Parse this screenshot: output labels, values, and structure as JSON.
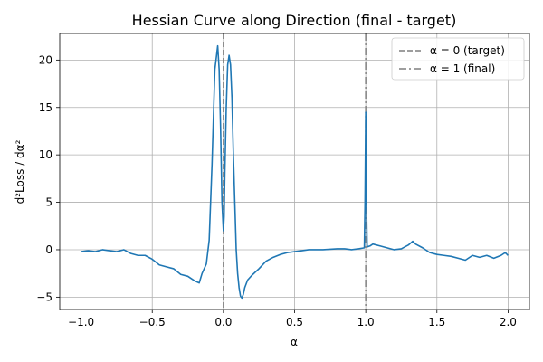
{
  "chart_data": {
    "type": "line",
    "title": "Hessian Curve along Direction (final - target)",
    "xlabel": "α",
    "ylabel": "d²Loss / dα²",
    "xlim": [
      -1.15,
      2.15
    ],
    "ylim": [
      -6.3,
      22.8
    ],
    "xticks": [
      -1.0,
      -0.5,
      0.0,
      0.5,
      1.0,
      1.5,
      2.0
    ],
    "xtick_labels": [
      "−1.0",
      "−0.5",
      "0.0",
      "0.5",
      "1.0",
      "1.5",
      "2.0"
    ],
    "yticks": [
      -5,
      0,
      5,
      10,
      15,
      20
    ],
    "ytick_labels": [
      "−5",
      "0",
      "5",
      "10",
      "15",
      "20"
    ],
    "grid": true,
    "legend_position": "top-right",
    "series": [
      {
        "color": "#1f77b4",
        "x": [
          -1.0,
          -0.95,
          -0.9,
          -0.85,
          -0.8,
          -0.75,
          -0.7,
          -0.65,
          -0.6,
          -0.55,
          -0.5,
          -0.45,
          -0.4,
          -0.35,
          -0.3,
          -0.25,
          -0.2,
          -0.17,
          -0.15,
          -0.12,
          -0.1,
          -0.08,
          -0.06,
          -0.04,
          -0.03,
          -0.02,
          -0.01,
          0.0,
          0.005,
          0.01,
          0.02,
          0.03,
          0.04,
          0.05,
          0.06,
          0.07,
          0.08,
          0.09,
          0.1,
          0.11,
          0.12,
          0.13,
          0.14,
          0.15,
          0.17,
          0.2,
          0.25,
          0.3,
          0.35,
          0.4,
          0.45,
          0.5,
          0.55,
          0.6,
          0.65,
          0.7,
          0.75,
          0.8,
          0.85,
          0.9,
          0.95,
          0.99,
          0.995,
          1.0,
          1.005,
          1.01,
          1.03,
          1.05,
          1.1,
          1.15,
          1.2,
          1.25,
          1.3,
          1.33,
          1.35,
          1.4,
          1.45,
          1.5,
          1.55,
          1.6,
          1.65,
          1.7,
          1.75,
          1.8,
          1.85,
          1.9,
          1.95,
          1.98,
          2.0
        ],
        "values": [
          -0.2,
          -0.1,
          -0.2,
          0.0,
          -0.1,
          -0.2,
          0.0,
          -0.4,
          -0.6,
          -0.6,
          -1.0,
          -1.6,
          -1.8,
          -2.0,
          -2.6,
          -2.8,
          -3.3,
          -3.5,
          -2.5,
          -1.5,
          1.0,
          9.0,
          19.0,
          21.5,
          19.0,
          13.0,
          5.0,
          2.0,
          3.5,
          8.0,
          15.0,
          19.5,
          20.5,
          19.5,
          16.0,
          10.0,
          5.0,
          0.0,
          -2.5,
          -4.0,
          -4.9,
          -5.1,
          -4.7,
          -4.0,
          -3.2,
          -2.7,
          -2.0,
          -1.2,
          -0.8,
          -0.5,
          -0.3,
          -0.2,
          -0.1,
          0.0,
          0.0,
          0.0,
          0.05,
          0.1,
          0.1,
          0.0,
          0.1,
          0.2,
          5.0,
          14.5,
          5.0,
          0.3,
          0.4,
          0.6,
          0.4,
          0.2,
          0.0,
          0.1,
          0.5,
          0.9,
          0.6,
          0.2,
          -0.3,
          -0.5,
          -0.6,
          -0.7,
          -0.9,
          -1.1,
          -0.6,
          -0.8,
          -0.6,
          -0.9,
          -0.6,
          -0.3,
          -0.6
        ]
      }
    ],
    "reference_lines": [
      {
        "x": 0,
        "label": "α = 0 (target)",
        "style": "dashed",
        "color": "#7f7f7f"
      },
      {
        "x": 1,
        "label": "α = 1 (final)",
        "style": "dashdot",
        "color": "#7f7f7f"
      }
    ]
  }
}
